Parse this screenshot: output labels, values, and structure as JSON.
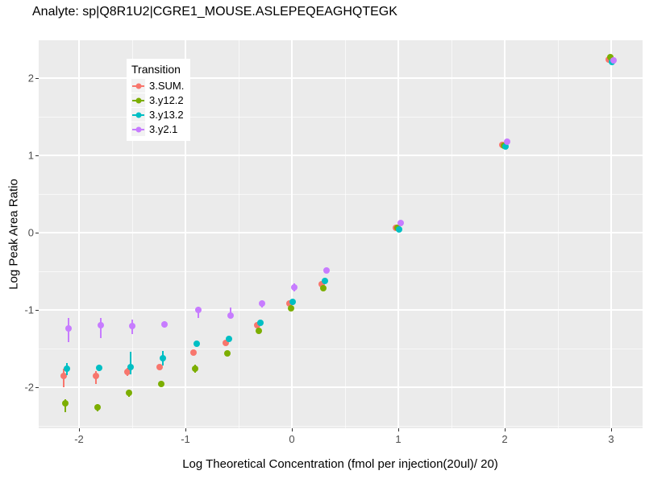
{
  "chart_data": {
    "type": "scatter",
    "title": "Analyte: sp|Q8R1U2|CGRE1_MOUSE.ASLEPEQEAGHQTEGK",
    "xlabel": "Log Theoretical Concentration (fmol per injection(20ul)/ 20)",
    "ylabel": "Log Peak Area Ratio",
    "legend_title": "Transition",
    "legend_position": "inside-top-left",
    "grid": true,
    "xlim": [
      -2.38,
      3.3
    ],
    "ylim": [
      -2.53,
      2.49
    ],
    "x_major_ticks": [
      -2,
      -1,
      0,
      1,
      2,
      3
    ],
    "x_minor_ticks": [
      -1.5,
      -0.5,
      0.5,
      1.5,
      2.5
    ],
    "y_major_ticks": [
      2,
      1,
      0,
      -1,
      -2
    ],
    "y_minor_ticks": [
      1.5,
      0.5,
      -0.5,
      -1.5,
      -2.5
    ],
    "colors": {
      "panel_bg": "#EBEBEB",
      "grid": "#FFFFFF",
      "tick_text": "#4D4D4D",
      "title_text": "#000000"
    },
    "x": [
      -2.12,
      -1.82,
      -1.52,
      -1.22,
      -0.9,
      -0.6,
      -0.3,
      0,
      0.3,
      1,
      2,
      3
    ],
    "series": [
      {
        "name": "3.SUM.",
        "color": "#F8766D",
        "dodge": -3,
        "points": [
          {
            "x": -2.12,
            "y": -1.85,
            "ymin": -2.0,
            "ymax": -1.76
          },
          {
            "x": -1.82,
            "y": -1.85,
            "ymin": -1.96,
            "ymax": -1.79
          },
          {
            "x": -1.52,
            "y": -1.8,
            "ymin": -1.85,
            "ymax": -1.75
          },
          {
            "x": -1.22,
            "y": -1.74,
            "ymin": -1.77,
            "ymax": -1.71
          },
          {
            "x": -0.9,
            "y": -1.55,
            "ymin": -1.58,
            "ymax": -1.52
          },
          {
            "x": -0.6,
            "y": -1.43,
            "ymin": -1.46,
            "ymax": -1.4
          },
          {
            "x": -0.3,
            "y": -1.2,
            "ymin": -1.22,
            "ymax": -1.18
          },
          {
            "x": 0,
            "y": -0.92,
            "ymin": -0.94,
            "ymax": -0.9
          },
          {
            "x": 0.3,
            "y": -0.67,
            "ymin": -0.69,
            "ymax": -0.65
          },
          {
            "x": 1,
            "y": 0.06,
            "ymin": 0.06,
            "ymax": 0.06
          },
          {
            "x": 2,
            "y": 1.14,
            "ymin": 1.14,
            "ymax": 1.14
          },
          {
            "x": 3,
            "y": 2.24,
            "ymin": 2.24,
            "ymax": 2.24
          }
        ]
      },
      {
        "name": "3.y12.2",
        "color": "#7CAE00",
        "dodge": -1,
        "points": [
          {
            "x": -2.12,
            "y": -2.21,
            "ymin": -2.32,
            "ymax": -2.16
          },
          {
            "x": -1.82,
            "y": -2.26,
            "ymin": -2.31,
            "ymax": -2.22
          },
          {
            "x": -1.52,
            "y": -2.07,
            "ymin": -2.12,
            "ymax": -2.03
          },
          {
            "x": -1.22,
            "y": -1.96,
            "ymin": -1.99,
            "ymax": -1.93
          },
          {
            "x": -0.9,
            "y": -1.76,
            "ymin": -1.81,
            "ymax": -1.71
          },
          {
            "x": -0.6,
            "y": -1.56,
            "ymin": -1.58,
            "ymax": -1.54
          },
          {
            "x": -0.3,
            "y": -1.27,
            "ymin": -1.29,
            "ymax": -1.25
          },
          {
            "x": 0,
            "y": -0.98,
            "ymin": -1.0,
            "ymax": -0.96
          },
          {
            "x": 0.3,
            "y": -0.72,
            "ymin": -0.74,
            "ymax": -0.7
          },
          {
            "x": 1,
            "y": 0.06,
            "ymin": 0.06,
            "ymax": 0.06
          },
          {
            "x": 2,
            "y": 1.13,
            "ymin": 1.13,
            "ymax": 1.13
          },
          {
            "x": 3,
            "y": 2.27,
            "ymin": 2.27,
            "ymax": 2.27
          }
        ]
      },
      {
        "name": "3.y13.2",
        "color": "#00BFC4",
        "dodge": 1,
        "points": [
          {
            "x": -2.12,
            "y": -1.76,
            "ymin": -1.84,
            "ymax": -1.69
          },
          {
            "x": -1.82,
            "y": -1.75,
            "ymin": -1.79,
            "ymax": -1.71
          },
          {
            "x": -1.52,
            "y": -1.74,
            "ymin": -1.83,
            "ymax": -1.54
          },
          {
            "x": -1.22,
            "y": -1.63,
            "ymin": -1.72,
            "ymax": -1.53
          },
          {
            "x": -0.9,
            "y": -1.44,
            "ymin": -1.47,
            "ymax": -1.41
          },
          {
            "x": -0.6,
            "y": -1.37,
            "ymin": -1.39,
            "ymax": -1.35
          },
          {
            "x": -0.3,
            "y": -1.17,
            "ymin": -1.19,
            "ymax": -1.15
          },
          {
            "x": 0,
            "y": -0.9,
            "ymin": -0.92,
            "ymax": -0.88
          },
          {
            "x": 0.3,
            "y": -0.63,
            "ymin": -0.65,
            "ymax": -0.61
          },
          {
            "x": 1,
            "y": 0.04,
            "ymin": 0.04,
            "ymax": 0.04
          },
          {
            "x": 2,
            "y": 1.11,
            "ymin": 1.11,
            "ymax": 1.11
          },
          {
            "x": 3,
            "y": 2.21,
            "ymin": 2.21,
            "ymax": 2.21
          }
        ]
      },
      {
        "name": "3.y2.1",
        "color": "#C77CFF",
        "dodge": 3,
        "points": [
          {
            "x": -2.12,
            "y": -1.24,
            "ymin": -1.42,
            "ymax": -1.1
          },
          {
            "x": -1.82,
            "y": -1.2,
            "ymin": -1.36,
            "ymax": -1.1
          },
          {
            "x": -1.52,
            "y": -1.21,
            "ymin": -1.31,
            "ymax": -1.12
          },
          {
            "x": -1.22,
            "y": -1.19,
            "ymin": -1.23,
            "ymax": -1.15
          },
          {
            "x": -0.9,
            "y": -1.0,
            "ymin": -1.1,
            "ymax": -0.96
          },
          {
            "x": -0.6,
            "y": -1.07,
            "ymin": -1.09,
            "ymax": -0.97
          },
          {
            "x": -0.3,
            "y": -0.92,
            "ymin": -0.97,
            "ymax": -0.88
          },
          {
            "x": 0,
            "y": -0.71,
            "ymin": -0.76,
            "ymax": -0.66
          },
          {
            "x": 0.3,
            "y": -0.49,
            "ymin": -0.52,
            "ymax": -0.46
          },
          {
            "x": 1,
            "y": 0.13,
            "ymin": 0.13,
            "ymax": 0.13
          },
          {
            "x": 2,
            "y": 1.18,
            "ymin": 1.18,
            "ymax": 1.18
          },
          {
            "x": 3,
            "y": 2.23,
            "ymin": 2.23,
            "ymax": 2.23
          }
        ]
      }
    ]
  }
}
